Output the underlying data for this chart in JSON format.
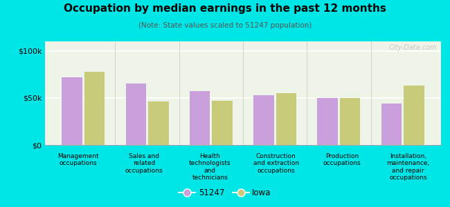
{
  "title": "Occupation by median earnings in the past 12 months",
  "subtitle": "(Note: State values scaled to 51247 population)",
  "categories": [
    "Management\noccupations",
    "Sales and\nrelated\noccupations",
    "Health\ntechnologists\nand\ntechnicians",
    "Construction\nand extraction\noccupations",
    "Production\noccupations",
    "Installation,\nmaintenance,\nand repair\noccupations"
  ],
  "values_51247": [
    72000,
    65000,
    57000,
    53000,
    50000,
    44000
  ],
  "values_iowa": [
    78000,
    46000,
    47000,
    55000,
    50000,
    63000
  ],
  "color_51247": "#c9a0dc",
  "color_iowa": "#c8cc7a",
  "background_color": "#00e5e5",
  "chart_bg_color": "#eef5e8",
  "ylim": [
    0,
    110000
  ],
  "ytick_labels": [
    "$0",
    "$50k",
    "$100k"
  ],
  "legend_label_51247": "51247",
  "legend_label_iowa": "Iowa",
  "watermark": "City-Data.com"
}
